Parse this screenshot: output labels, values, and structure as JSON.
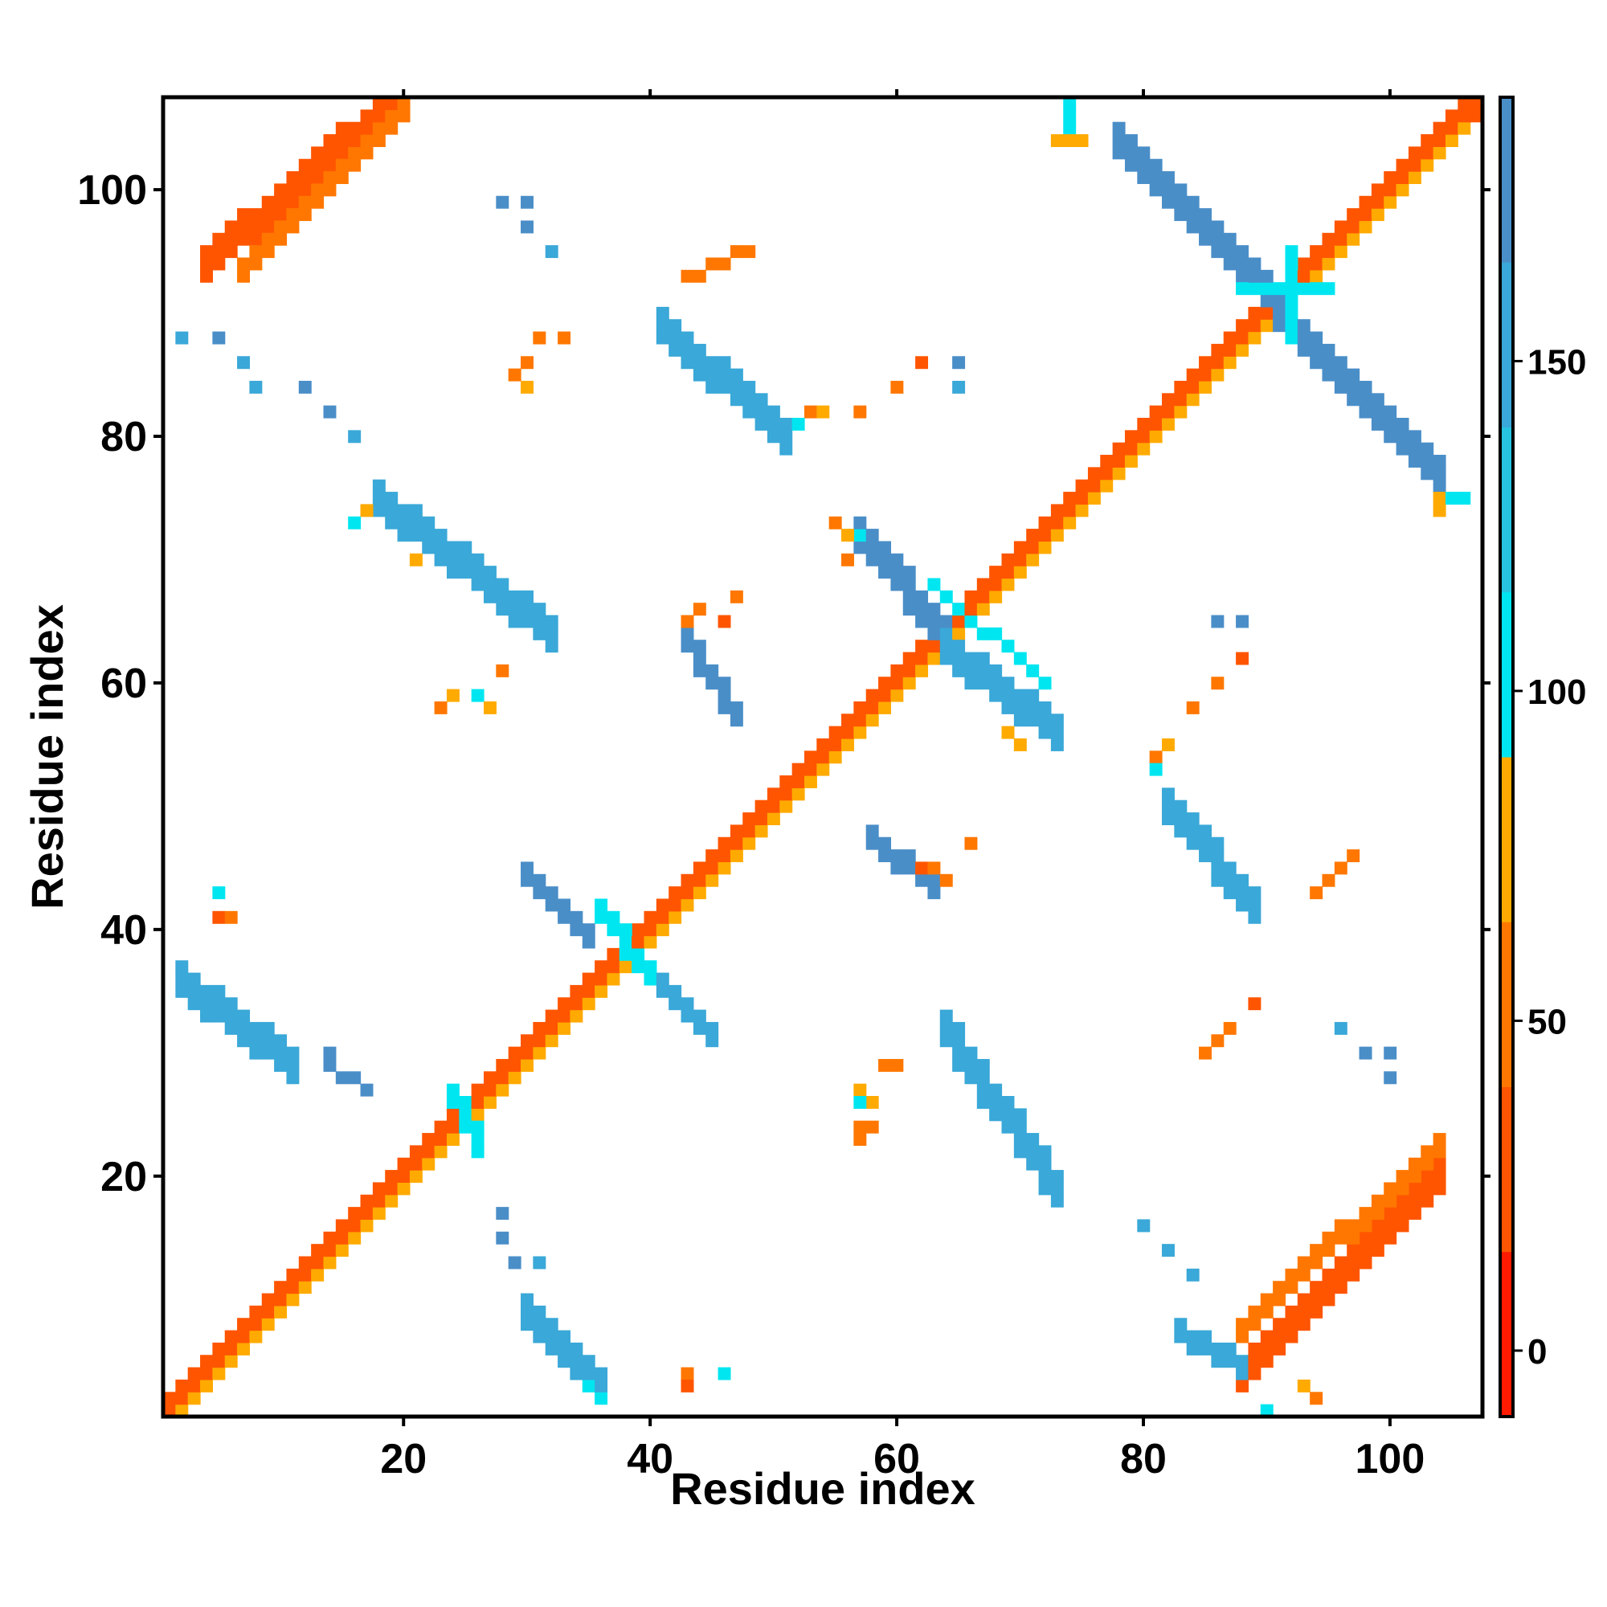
{
  "chart_data": {
    "type": "heatmap",
    "title": "",
    "xlabel": "Residue index",
    "ylabel": "Residue index",
    "xlim": [
      1,
      107
    ],
    "ylim": [
      1,
      107
    ],
    "x_ticks": [
      20,
      40,
      60,
      80,
      100
    ],
    "y_ticks": [
      20,
      40,
      60,
      80,
      100
    ],
    "colorbar": {
      "range": [
        -10,
        190
      ],
      "ticks": [
        0,
        50,
        100,
        150
      ],
      "bands": [
        {
          "from": -10,
          "to": 15,
          "color": "#ff1a00"
        },
        {
          "from": 15,
          "to": 40,
          "color": "#ff5500"
        },
        {
          "from": 40,
          "to": 65,
          "color": "#ff7700"
        },
        {
          "from": 65,
          "to": 90,
          "color": "#ffaa00"
        },
        {
          "from": 90,
          "to": 115,
          "color": "#00e6f0"
        },
        {
          "from": 115,
          "to": 140,
          "color": "#27c4e0"
        },
        {
          "from": 140,
          "to": 165,
          "color": "#3aa8d8"
        },
        {
          "from": 165,
          "to": 190,
          "color": "#4a8ec8"
        }
      ]
    },
    "segments": [
      {
        "from": [
          1,
          1
        ],
        "to": [
          107,
          107
        ],
        "width": 3,
        "value": 30
      },
      {
        "from": [
          2,
          1
        ],
        "to": [
          106,
          105
        ],
        "width": 1,
        "value": 70
      },
      {
        "from": [
          4,
          94
        ],
        "to": [
          19,
          107
        ],
        "width": 3,
        "value": 15
      },
      {
        "from": [
          7,
          93
        ],
        "to": [
          20,
          106
        ],
        "width": 2,
        "value": 55
      },
      {
        "from": [
          88,
          4
        ],
        "to": [
          104,
          20
        ],
        "width": 3,
        "value": 15
      },
      {
        "from": [
          88,
          7
        ],
        "to": [
          104,
          22
        ],
        "width": 2,
        "value": 55
      },
      {
        "from": [
          78,
          104
        ],
        "to": [
          91,
          91
        ],
        "width": 3,
        "value": 165
      },
      {
        "from": [
          91,
          90
        ],
        "to": [
          104,
          77
        ],
        "width": 3,
        "value": 165
      },
      {
        "from": [
          88,
          92
        ],
        "to": [
          95,
          92
        ],
        "width": 1,
        "value": 100
      },
      {
        "from": [
          92,
          88
        ],
        "to": [
          92,
          95
        ],
        "width": 1,
        "value": 100
      },
      {
        "from": [
          41,
          89
        ],
        "to": [
          51,
          80
        ],
        "width": 3,
        "value": 160
      },
      {
        "from": [
          18,
          75
        ],
        "to": [
          32,
          64
        ],
        "width": 3,
        "value": 155
      },
      {
        "from": [
          57,
          72
        ],
        "to": [
          64,
          64
        ],
        "width": 3,
        "value": 165
      },
      {
        "from": [
          64,
          63
        ],
        "to": [
          73,
          56
        ],
        "width": 3,
        "value": 160
      },
      {
        "from": [
          63,
          68
        ],
        "to": [
          72,
          60
        ],
        "width": 1,
        "value": 90
      },
      {
        "from": [
          43,
          63
        ],
        "to": [
          47,
          57
        ],
        "width": 2,
        "value": 165
      },
      {
        "from": [
          82,
          50
        ],
        "to": [
          89,
          42
        ],
        "width": 3,
        "value": 150
      },
      {
        "from": [
          58,
          47
        ],
        "to": [
          63,
          43
        ],
        "width": 2,
        "value": 165
      },
      {
        "from": [
          2,
          36
        ],
        "to": [
          11,
          29
        ],
        "width": 3,
        "value": 155
      },
      {
        "from": [
          30,
          44
        ],
        "to": [
          35,
          39
        ],
        "width": 2,
        "value": 165
      },
      {
        "from": [
          36,
          41
        ],
        "to": [
          40,
          36
        ],
        "width": 2,
        "value": 110
      },
      {
        "from": [
          41,
          35
        ],
        "to": [
          45,
          31
        ],
        "width": 2,
        "value": 155
      },
      {
        "from": [
          64,
          32
        ],
        "to": [
          73,
          19
        ],
        "width": 3,
        "value": 160
      },
      {
        "from": [
          30,
          9
        ],
        "to": [
          36,
          3
        ],
        "width": 3,
        "value": 150
      },
      {
        "from": [
          24,
          26
        ],
        "to": [
          26,
          22
        ],
        "width": 2,
        "value": 110
      },
      {
        "from": [
          83,
          7
        ],
        "to": [
          88,
          4
        ],
        "width": 2,
        "value": 140
      },
      {
        "from": [
          74,
          107
        ],
        "to": [
          74,
          105
        ],
        "width": 1,
        "value": 100
      },
      {
        "from": [
          73,
          104
        ],
        "to": [
          75,
          104
        ],
        "width": 1,
        "value": 70
      },
      {
        "from": [
          48,
          95
        ],
        "to": [
          43,
          93
        ],
        "width": 1,
        "value": 55
      },
      {
        "from": [
          14,
          29
        ],
        "to": [
          17,
          27
        ],
        "width": 1,
        "value": 165
      },
      {
        "from": [
          97,
          46
        ],
        "to": [
          94,
          43
        ],
        "width": 1,
        "value": 50
      },
      {
        "from": [
          35,
          3
        ],
        "to": [
          36,
          2
        ],
        "width": 1,
        "value": 100
      }
    ],
    "cells": [
      {
        "x": 2,
        "y": 88,
        "value": 140
      },
      {
        "x": 5,
        "y": 88,
        "value": 165
      },
      {
        "x": 7,
        "y": 86,
        "value": 140
      },
      {
        "x": 8,
        "y": 84,
        "value": 140
      },
      {
        "x": 12,
        "y": 84,
        "value": 165
      },
      {
        "x": 14,
        "y": 82,
        "value": 165
      },
      {
        "x": 16,
        "y": 80,
        "value": 140
      },
      {
        "x": 28,
        "y": 99,
        "value": 165
      },
      {
        "x": 30,
        "y": 99,
        "value": 165
      },
      {
        "x": 30,
        "y": 97,
        "value": 165
      },
      {
        "x": 32,
        "y": 95,
        "value": 140
      },
      {
        "x": 31,
        "y": 88,
        "value": 55
      },
      {
        "x": 33,
        "y": 88,
        "value": 55
      },
      {
        "x": 30,
        "y": 86,
        "value": 55
      },
      {
        "x": 29,
        "y": 85,
        "value": 55
      },
      {
        "x": 30,
        "y": 84,
        "value": 65
      },
      {
        "x": 62,
        "y": 86,
        "value": 15
      },
      {
        "x": 65,
        "y": 86,
        "value": 165
      },
      {
        "x": 65,
        "y": 84,
        "value": 140
      },
      {
        "x": 60,
        "y": 84,
        "value": 50
      },
      {
        "x": 57,
        "y": 82,
        "value": 50
      },
      {
        "x": 53,
        "y": 82,
        "value": 55
      },
      {
        "x": 54,
        "y": 82,
        "value": 70
      },
      {
        "x": 52,
        "y": 81,
        "value": 100
      },
      {
        "x": 55,
        "y": 73,
        "value": 60
      },
      {
        "x": 56,
        "y": 72,
        "value": 70
      },
      {
        "x": 56,
        "y": 70,
        "value": 55
      },
      {
        "x": 57,
        "y": 72,
        "value": 110
      },
      {
        "x": 17,
        "y": 74,
        "value": 70
      },
      {
        "x": 16,
        "y": 73,
        "value": 100
      },
      {
        "x": 21,
        "y": 70,
        "value": 70
      },
      {
        "x": 43,
        "y": 65,
        "value": 55
      },
      {
        "x": 44,
        "y": 66,
        "value": 40
      },
      {
        "x": 46,
        "y": 65,
        "value": 20
      },
      {
        "x": 47,
        "y": 67,
        "value": 55
      },
      {
        "x": 28,
        "y": 61,
        "value": 55
      },
      {
        "x": 23,
        "y": 58,
        "value": 55
      },
      {
        "x": 24,
        "y": 59,
        "value": 70
      },
      {
        "x": 26,
        "y": 59,
        "value": 100
      },
      {
        "x": 27,
        "y": 58,
        "value": 70
      },
      {
        "x": 86,
        "y": 65,
        "value": 165
      },
      {
        "x": 88,
        "y": 65,
        "value": 165
      },
      {
        "x": 88,
        "y": 62,
        "value": 15
      },
      {
        "x": 86,
        "y": 60,
        "value": 40
      },
      {
        "x": 84,
        "y": 58,
        "value": 55
      },
      {
        "x": 81,
        "y": 54,
        "value": 55
      },
      {
        "x": 82,
        "y": 55,
        "value": 70
      },
      {
        "x": 81,
        "y": 53,
        "value": 100
      },
      {
        "x": 69,
        "y": 56,
        "value": 70
      },
      {
        "x": 70,
        "y": 55,
        "value": 65
      },
      {
        "x": 62,
        "y": 45,
        "value": 15
      },
      {
        "x": 63,
        "y": 45,
        "value": 40
      },
      {
        "x": 64,
        "y": 44,
        "value": 55
      },
      {
        "x": 66,
        "y": 47,
        "value": 55
      },
      {
        "x": 5,
        "y": 43,
        "value": 100
      },
      {
        "x": 5,
        "y": 41,
        "value": 15
      },
      {
        "x": 6,
        "y": 41,
        "value": 60
      },
      {
        "x": 14,
        "y": 30,
        "value": 165
      },
      {
        "x": 89,
        "y": 34,
        "value": 15
      },
      {
        "x": 87,
        "y": 32,
        "value": 40
      },
      {
        "x": 86,
        "y": 31,
        "value": 55
      },
      {
        "x": 85,
        "y": 30,
        "value": 55
      },
      {
        "x": 96,
        "y": 32,
        "value": 140
      },
      {
        "x": 98,
        "y": 30,
        "value": 165
      },
      {
        "x": 100,
        "y": 30,
        "value": 165
      },
      {
        "x": 100,
        "y": 28,
        "value": 165
      },
      {
        "x": 59,
        "y": 29,
        "value": 40
      },
      {
        "x": 60,
        "y": 29,
        "value": 55
      },
      {
        "x": 57,
        "y": 27,
        "value": 70
      },
      {
        "x": 58,
        "y": 26,
        "value": 70
      },
      {
        "x": 57,
        "y": 26,
        "value": 100
      },
      {
        "x": 57,
        "y": 24,
        "value": 55
      },
      {
        "x": 58,
        "y": 24,
        "value": 60
      },
      {
        "x": 57,
        "y": 23,
        "value": 55
      },
      {
        "x": 28,
        "y": 17,
        "value": 165
      },
      {
        "x": 28,
        "y": 15,
        "value": 165
      },
      {
        "x": 29,
        "y": 13,
        "value": 165
      },
      {
        "x": 31,
        "y": 13,
        "value": 140
      },
      {
        "x": 80,
        "y": 16,
        "value": 140
      },
      {
        "x": 82,
        "y": 14,
        "value": 140
      },
      {
        "x": 84,
        "y": 12,
        "value": 140
      },
      {
        "x": 43,
        "y": 4,
        "value": 55
      },
      {
        "x": 43,
        "y": 3,
        "value": 15
      },
      {
        "x": 46,
        "y": 4,
        "value": 100
      },
      {
        "x": 90,
        "y": 1,
        "value": 100
      },
      {
        "x": 93,
        "y": 3,
        "value": 70
      },
      {
        "x": 94,
        "y": 2,
        "value": 55
      },
      {
        "x": 104,
        "y": 75,
        "value": 70
      },
      {
        "x": 104,
        "y": 74,
        "value": 70
      },
      {
        "x": 105,
        "y": 75,
        "value": 100
      },
      {
        "x": 106,
        "y": 75,
        "value": 100
      },
      {
        "x": 104,
        "y": 77,
        "value": 165
      }
    ]
  }
}
